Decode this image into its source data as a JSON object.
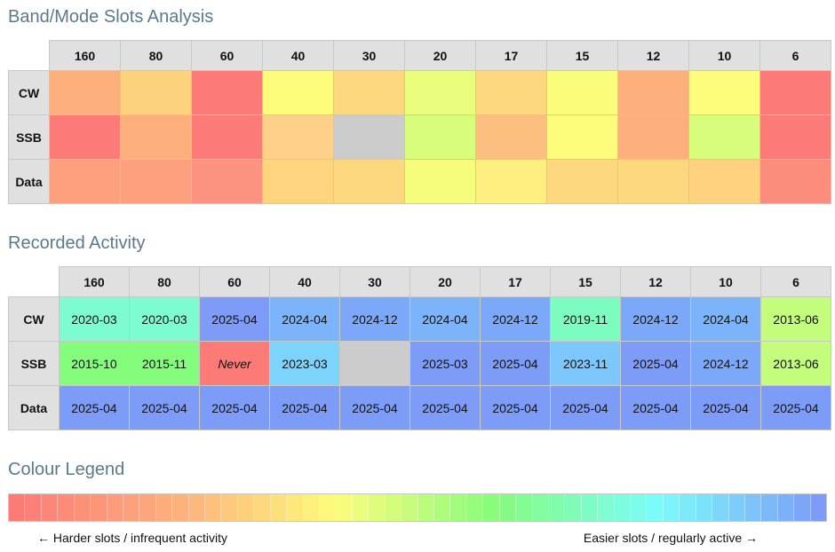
{
  "sections": {
    "slots_title": "Band/Mode Slots Analysis",
    "activity_title": "Recorded Activity",
    "legend_title": "Colour Legend"
  },
  "bands": [
    "160",
    "80",
    "60",
    "40",
    "30",
    "20",
    "17",
    "15",
    "12",
    "10",
    "6"
  ],
  "modes": [
    "CW",
    "SSB",
    "Data"
  ],
  "slots_colors": [
    [
      "#fdb07c",
      "#fdd27c",
      "#fc7b76",
      "#fdfc7c",
      "#fed87f",
      "#ecfc7c",
      "#fed87f",
      "#fafc7c",
      "#fdb07c",
      "#fdfc7c",
      "#fc7b76"
    ],
    [
      "#fc7b76",
      "#fdb07c",
      "#fc7b76",
      "#fed08a",
      "#cccccc",
      "#d8fc7c",
      "#fdbf80",
      "#fdfc7c",
      "#fdb07c",
      "#d8fc7c",
      "#fc7b76"
    ],
    [
      "#fda07e",
      "#fda07e",
      "#fc9280",
      "#fed47f",
      "#fed87f",
      "#f6fc7c",
      "#fef080",
      "#fed87f",
      "#fed87f",
      "#fed27e",
      "#fc8c7c"
    ]
  ],
  "activity": [
    [
      {
        "text": "2020-03",
        "color": "#7cfcd0"
      },
      {
        "text": "2020-03",
        "color": "#7cfcd0"
      },
      {
        "text": "2025-04",
        "color": "#7c9cf8"
      },
      {
        "text": "2024-04",
        "color": "#7cb4fc"
      },
      {
        "text": "2024-12",
        "color": "#7ca8fa"
      },
      {
        "text": "2024-04",
        "color": "#7cb4fc"
      },
      {
        "text": "2024-12",
        "color": "#7ca8fa"
      },
      {
        "text": "2019-11",
        "color": "#7cfcbe"
      },
      {
        "text": "2024-12",
        "color": "#7ca8fa"
      },
      {
        "text": "2024-04",
        "color": "#7cb4fc"
      },
      {
        "text": "2013-06",
        "color": "#c4fc7c"
      }
    ],
    [
      {
        "text": "2015-10",
        "color": "#84fc7c"
      },
      {
        "text": "2015-11",
        "color": "#84fc7c"
      },
      {
        "text": "Never",
        "color": "#fc7b76",
        "never": true
      },
      {
        "text": "2023-03",
        "color": "#7cd4fc"
      },
      {
        "text": "",
        "color": "#cccccc"
      },
      {
        "text": "2025-03",
        "color": "#7c9cf8"
      },
      {
        "text": "2025-04",
        "color": "#7c9cf8"
      },
      {
        "text": "2023-11",
        "color": "#7cc8fc"
      },
      {
        "text": "2025-04",
        "color": "#7c9cf8"
      },
      {
        "text": "2024-12",
        "color": "#7ca8fa"
      },
      {
        "text": "2013-06",
        "color": "#c4fc7c"
      }
    ],
    [
      {
        "text": "2025-04",
        "color": "#7c9cf8"
      },
      {
        "text": "2025-04",
        "color": "#7c9cf8"
      },
      {
        "text": "2025-04",
        "color": "#7c9cf8"
      },
      {
        "text": "2025-04",
        "color": "#7c9cf8"
      },
      {
        "text": "2025-04",
        "color": "#7c9cf8"
      },
      {
        "text": "2025-04",
        "color": "#7c9cf8"
      },
      {
        "text": "2025-04",
        "color": "#7c9cf8"
      },
      {
        "text": "2025-04",
        "color": "#7c9cf8"
      },
      {
        "text": "2025-04",
        "color": "#7c9cf8"
      },
      {
        "text": "2025-04",
        "color": "#7c9cf8"
      },
      {
        "text": "2025-04",
        "color": "#7c9cf8"
      }
    ]
  ],
  "legend": {
    "left_label": "← Harder slots / infrequent activity",
    "right_label": "Easier slots / regularly active →",
    "gradient_stops": [
      "#fc7b76",
      "#fdb07c",
      "#fdfc7c",
      "#84fc7c",
      "#7cfcfc",
      "#7c9cf8"
    ],
    "segments": 50
  }
}
